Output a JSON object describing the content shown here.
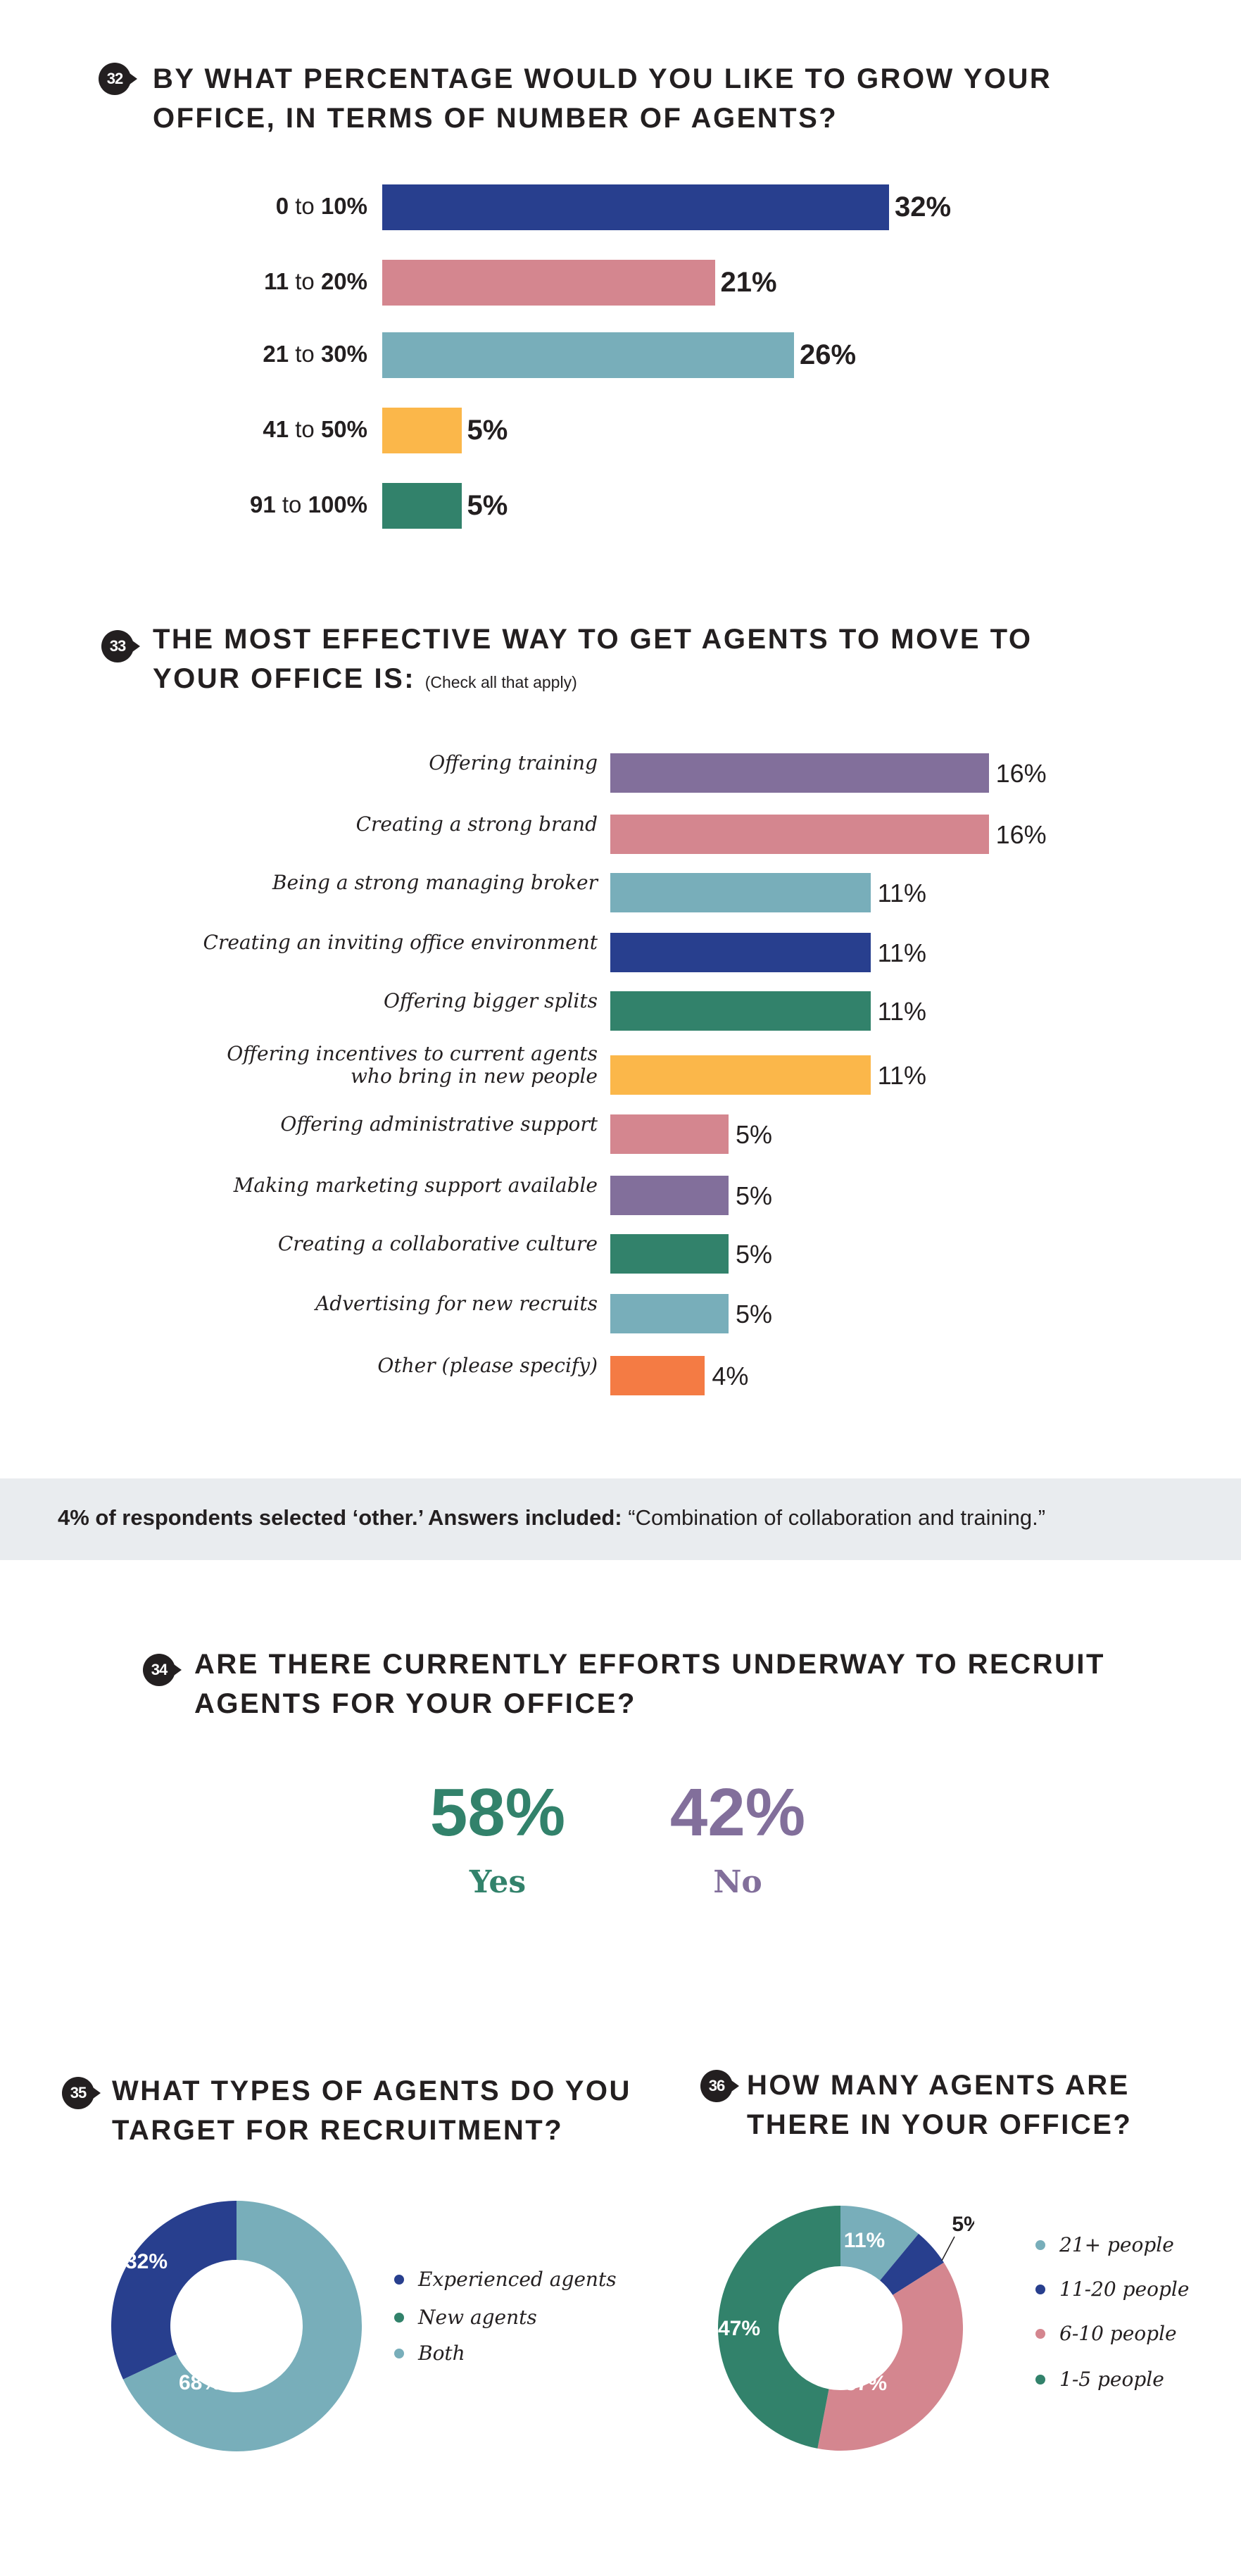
{
  "colors": {
    "navy": "#283f8e",
    "pink": "#d4868f",
    "teal": "#78aeba",
    "yellow": "#fbb74a",
    "green": "#32826b",
    "purple": "#826f9b",
    "orange": "#f47b44",
    "band": "#e9ecef"
  },
  "q32": {
    "number": "32",
    "title_line1": "BY WHAT PERCENTAGE WOULD YOU LIKE TO GROW YOUR",
    "title_line2": "OFFICE, IN TERMS OF NUMBER OF AGENTS?"
  },
  "q33": {
    "number": "33",
    "title_line1": "THE MOST EFFECTIVE WAY TO GET AGENTS TO MOVE TO",
    "title_line2": "YOUR OFFICE IS:",
    "title_note": "(Check all that apply)"
  },
  "note": {
    "bold": "4% of respondents selected ‘other.’ Answers included:",
    "quote": "“Combination of collaboration and training.”"
  },
  "q34": {
    "number": "34",
    "title_line1": "ARE THERE CURRENTLY EFFORTS UNDERWAY TO RECRUIT",
    "title_line2": "AGENTS FOR YOUR OFFICE?"
  },
  "q35": {
    "number": "35",
    "title_line1": "WHAT TYPES OF AGENTS DO YOU",
    "title_line2": "TARGET FOR RECRUITMENT?"
  },
  "q36": {
    "number": "36",
    "title_line1": "HOW MANY AGENTS ARE",
    "title_line2": "THERE IN YOUR OFFICE?"
  },
  "chart_data": [
    {
      "type": "bar",
      "orientation": "horizontal",
      "title": "By what percentage would you like to grow your office, in terms of number of agents?",
      "categories": [
        {
          "from": "0",
          "to_word": "to",
          "to": "10%"
        },
        {
          "from": "11",
          "to_word": "to",
          "to": "20%"
        },
        {
          "from": "21",
          "to_word": "to",
          "to": "30%"
        },
        {
          "from": "41",
          "to_word": "to",
          "to": "50%"
        },
        {
          "from": "91",
          "to_word": "to",
          "to": "100%"
        }
      ],
      "values": [
        32,
        21,
        26,
        5,
        5
      ],
      "labels": [
        "32%",
        "21%",
        "26%",
        "5%",
        "5%"
      ],
      "colors": [
        "#283f8e",
        "#d4868f",
        "#78aeba",
        "#fbb74a",
        "#32826b"
      ],
      "xlabel": "",
      "ylabel": "",
      "grid": false
    },
    {
      "type": "bar",
      "orientation": "horizontal",
      "title": "The most effective way to get agents to move to your office is:",
      "categories": [
        "Offering training",
        "Creating a strong brand",
        "Being a strong managing broker",
        "Creating an inviting office environment",
        "Offering bigger splits",
        "Offering incentives to current agents\nwho bring in new people",
        "Offering administrative support",
        "Making marketing support available",
        "Creating a collaborative culture",
        "Advertising for new recruits",
        "Other (please specify)"
      ],
      "values": [
        16,
        16,
        11,
        11,
        11,
        11,
        5,
        5,
        5,
        5,
        4
      ],
      "labels": [
        "16%",
        "16%",
        "11%",
        "11%",
        "11%",
        "11%",
        "5%",
        "5%",
        "5%",
        "5%",
        "4%"
      ],
      "colors": [
        "#826f9b",
        "#d4868f",
        "#78aeba",
        "#283f8e",
        "#32826b",
        "#fbb74a",
        "#d4868f",
        "#826f9b",
        "#32826b",
        "#78aeba",
        "#f47b44"
      ],
      "xlabel": "",
      "ylabel": "",
      "grid": false
    },
    {
      "type": "table",
      "title": "Are there currently efforts underway to recruit agents for your office?",
      "categories": [
        "Yes",
        "No"
      ],
      "values": [
        58,
        42
      ],
      "labels": [
        "58%",
        "42%"
      ],
      "colors": [
        "#32826b",
        "#826f9b"
      ]
    },
    {
      "type": "pie",
      "donut": true,
      "title": "What types of agents do you target for recruitment?",
      "categories": [
        "Experienced agents",
        "New agents",
        "Both"
      ],
      "values": [
        32,
        0,
        68
      ],
      "labels": [
        "32%",
        "",
        "68%"
      ],
      "colors": [
        "#283f8e",
        "#32826b",
        "#78aeba"
      ],
      "legend": "right"
    },
    {
      "type": "pie",
      "donut": true,
      "title": "How many agents are there in your office?",
      "categories": [
        "21+ people",
        "11-20 people",
        "6-10 people",
        "1-5 people"
      ],
      "values": [
        11,
        5,
        37,
        47
      ],
      "labels": [
        "11%",
        "5%",
        "37%",
        "47%"
      ],
      "colors": [
        "#78aeba",
        "#283f8e",
        "#d4868f",
        "#32826b"
      ],
      "legend": "right"
    }
  ]
}
